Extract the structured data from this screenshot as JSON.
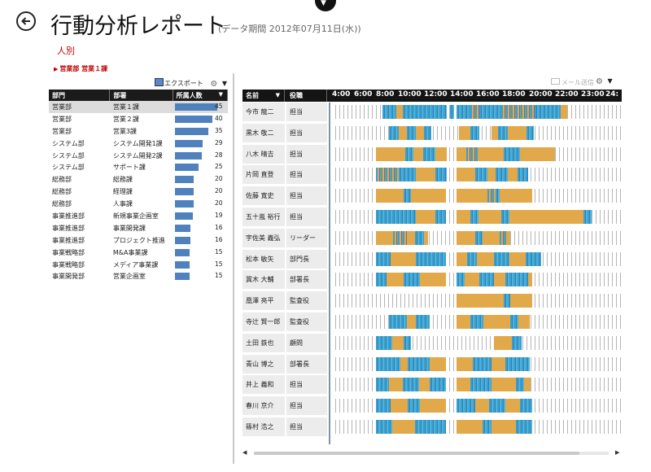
{
  "header": {
    "title": "行動分析レポート",
    "subtitle": "(データ期間 2012年07月11日(水))",
    "view_mode": "人別",
    "breadcrumb": "営業部 営業１課"
  },
  "left_panel": {
    "export_label": "エクスポート",
    "columns": [
      "部門",
      "部署",
      "所属人数"
    ],
    "rows": [
      {
        "dept": "営業部",
        "section": "営業１課",
        "count": 45,
        "selected": true
      },
      {
        "dept": "営業部",
        "section": "営業２課",
        "count": 40
      },
      {
        "dept": "営業部",
        "section": "営業3課",
        "count": 35
      },
      {
        "dept": "システム部",
        "section": "システム開発1課",
        "count": 29
      },
      {
        "dept": "システム部",
        "section": "システム開発2課",
        "count": 28
      },
      {
        "dept": "システム部",
        "section": "サポート課",
        "count": 25
      },
      {
        "dept": "総務部",
        "section": "総務課",
        "count": 20
      },
      {
        "dept": "総務部",
        "section": "経理課",
        "count": 20
      },
      {
        "dept": "総務部",
        "section": "人事課",
        "count": 20
      },
      {
        "dept": "事業推進部",
        "section": "新規事業企画室",
        "count": 19
      },
      {
        "dept": "事業推進部",
        "section": "事業開発課",
        "count": 16
      },
      {
        "dept": "事業推進部",
        "section": "プロジェクト推進",
        "count": 16
      },
      {
        "dept": "事業戦略部",
        "section": "M&A事業課",
        "count": 15
      },
      {
        "dept": "事業戦略部",
        "section": "メディア事業課",
        "count": 15
      },
      {
        "dept": "事業開発部",
        "section": "営業企画室",
        "count": 15
      }
    ],
    "max_count": 45
  },
  "right_panel": {
    "mail_label": "メール送信",
    "columns": [
      "名前",
      "役職"
    ],
    "time_labels": [
      "4:00",
      "6:00",
      "8:00",
      "10:00",
      "12:00",
      "14:00",
      "16:00",
      "18:00",
      "20:00",
      "22:00",
      "23:00",
      "24:"
    ],
    "timeline_start_hour": 4,
    "timeline_end_hour": 25.25,
    "colors": {
      "blue": "#3d9ecf",
      "orange": "#e2a94a",
      "purple": "#7a62b5",
      "green": "#7fb04d"
    },
    "people": [
      {
        "name": "今市 龍二",
        "role": "担当",
        "segments": [
          [
            7.5,
            8.5,
            "blue"
          ],
          [
            8.5,
            9.0,
            "orange"
          ],
          [
            9.0,
            12.3,
            "blue"
          ],
          [
            12.5,
            12.8,
            "blue"
          ],
          [
            13.0,
            14.0,
            "blue"
          ],
          [
            14.0,
            14.7,
            "mix"
          ],
          [
            14.7,
            16.3,
            "blue"
          ],
          [
            16.3,
            18.8,
            "mix"
          ],
          [
            18.8,
            20.7,
            "blue"
          ],
          [
            20.7,
            21.2,
            "orange"
          ]
        ]
      },
      {
        "name": "黒木 敬二",
        "role": "担当",
        "segments": [
          [
            8.0,
            8.7,
            "blue"
          ],
          [
            8.7,
            9.3,
            "orange"
          ],
          [
            9.3,
            10.0,
            "blue"
          ],
          [
            10.0,
            10.6,
            "orange"
          ],
          [
            10.6,
            11.1,
            "blue"
          ],
          [
            13.2,
            14.0,
            "orange"
          ],
          [
            14.0,
            14.7,
            "blue"
          ],
          [
            15.6,
            16.1,
            "orange"
          ],
          [
            16.1,
            16.8,
            "blue"
          ],
          [
            16.8,
            18.2,
            "orange"
          ],
          [
            18.2,
            18.7,
            "blue"
          ]
        ]
      },
      {
        "name": "八木 晴吉",
        "role": "担当",
        "segments": [
          [
            7.0,
            9.2,
            "orange"
          ],
          [
            9.2,
            9.8,
            "blue"
          ],
          [
            9.8,
            10.5,
            "orange"
          ],
          [
            10.5,
            11.4,
            "blue"
          ],
          [
            11.4,
            12.3,
            "orange"
          ],
          [
            13.0,
            13.7,
            "orange"
          ],
          [
            13.7,
            14.6,
            "mix"
          ],
          [
            14.6,
            16.5,
            "orange"
          ],
          [
            16.5,
            17.7,
            "blue"
          ],
          [
            17.7,
            20.3,
            "orange"
          ]
        ]
      },
      {
        "name": "片岡 直登",
        "role": "担当",
        "segments": [
          [
            7.0,
            8.7,
            "mix"
          ],
          [
            8.7,
            10.0,
            "blue"
          ],
          [
            10.0,
            11.4,
            "orange"
          ],
          [
            11.4,
            12.3,
            "blue"
          ],
          [
            13.0,
            14.4,
            "orange"
          ],
          [
            14.4,
            15.3,
            "blue"
          ],
          [
            15.3,
            15.9,
            "orange"
          ],
          [
            15.9,
            16.8,
            "blue"
          ],
          [
            16.8,
            17.5,
            "orange"
          ],
          [
            17.5,
            18.3,
            "blue"
          ]
        ]
      },
      {
        "name": "佐藤 寛史",
        "role": "担当",
        "segments": [
          [
            7.0,
            9.1,
            "orange"
          ],
          [
            9.1,
            9.6,
            "blue"
          ],
          [
            9.6,
            12.2,
            "orange"
          ],
          [
            13.0,
            15.3,
            "orange"
          ],
          [
            15.3,
            15.9,
            "mix"
          ],
          [
            15.9,
            16.2,
            "blue"
          ],
          [
            16.2,
            18.6,
            "orange"
          ]
        ]
      },
      {
        "name": "五十嵐 裕行",
        "role": "担当",
        "segments": [
          [
            7.0,
            10.0,
            "blue"
          ],
          [
            10.0,
            11.4,
            "orange"
          ],
          [
            11.4,
            12.2,
            "blue"
          ],
          [
            13.0,
            14.0,
            "orange"
          ],
          [
            14.0,
            14.6,
            "blue"
          ],
          [
            14.6,
            16.3,
            "orange"
          ],
          [
            16.3,
            16.9,
            "blue"
          ],
          [
            16.9,
            22.4,
            "orange"
          ],
          [
            22.4,
            23.0,
            "blue"
          ]
        ]
      },
      {
        "name": "宇佐美 義弘",
        "role": "リーダー",
        "segments": [
          [
            7.0,
            8.3,
            "orange"
          ],
          [
            8.3,
            9.3,
            "mix"
          ],
          [
            9.3,
            9.9,
            "orange"
          ],
          [
            9.9,
            10.6,
            "blue"
          ],
          [
            10.6,
            10.9,
            "orange"
          ],
          [
            13.0,
            14.4,
            "orange"
          ],
          [
            14.4,
            14.9,
            "blue"
          ],
          [
            14.9,
            16.2,
            "orange"
          ],
          [
            16.2,
            16.8,
            "mix"
          ],
          [
            16.8,
            17.0,
            "orange"
          ]
        ]
      },
      {
        "name": "松本 敏矢",
        "role": "部門長",
        "segments": [
          [
            7.0,
            8.1,
            "blue"
          ],
          [
            8.1,
            10.0,
            "orange"
          ],
          [
            10.0,
            12.2,
            "blue"
          ],
          [
            13.0,
            13.8,
            "orange"
          ],
          [
            13.8,
            14.5,
            "blue"
          ],
          [
            14.5,
            15.8,
            "orange"
          ],
          [
            15.8,
            16.9,
            "blue"
          ],
          [
            16.9,
            18.1,
            "orange"
          ],
          [
            18.1,
            19.3,
            "blue"
          ]
        ]
      },
      {
        "name": "冀木 大輔",
        "role": "部署長",
        "segments": [
          [
            7.0,
            7.8,
            "blue"
          ],
          [
            7.8,
            9.1,
            "orange"
          ],
          [
            9.1,
            10.3,
            "blue"
          ],
          [
            10.3,
            12.2,
            "orange"
          ],
          [
            13.0,
            13.6,
            "blue"
          ],
          [
            13.6,
            14.7,
            "orange"
          ],
          [
            14.7,
            15.8,
            "blue"
          ],
          [
            15.8,
            16.6,
            "orange"
          ],
          [
            16.6,
            18.3,
            "blue"
          ],
          [
            18.3,
            18.6,
            "orange"
          ]
        ]
      },
      {
        "name": "凰澤 亮平",
        "role": "監査役",
        "segments": [
          [
            13.0,
            16.5,
            "orange"
          ],
          [
            16.5,
            17.0,
            "blue"
          ],
          [
            17.0,
            18.6,
            "orange"
          ]
        ]
      },
      {
        "name": "寺辻 賢一郎",
        "role": "監査役",
        "segments": [
          [
            8.0,
            9.3,
            "blue"
          ],
          [
            9.3,
            10.0,
            "orange"
          ],
          [
            10.0,
            11.0,
            "blue"
          ],
          [
            13.0,
            14.0,
            "orange"
          ],
          [
            14.0,
            15.0,
            "blue"
          ],
          [
            15.0,
            17.0,
            "orange"
          ],
          [
            17.0,
            17.6,
            "blue"
          ],
          [
            17.6,
            18.4,
            "orange"
          ]
        ]
      },
      {
        "name": "土田 鉄也",
        "role": "顧問",
        "segments": [
          [
            7.0,
            8.2,
            "blue"
          ],
          [
            8.2,
            9.1,
            "orange"
          ],
          [
            9.1,
            9.6,
            "blue"
          ],
          [
            15.8,
            17.1,
            "orange"
          ],
          [
            17.1,
            17.8,
            "blue"
          ]
        ]
      },
      {
        "name": "青山 博之",
        "role": "部署長",
        "segments": [
          [
            7.0,
            8.8,
            "blue"
          ],
          [
            8.8,
            9.4,
            "orange"
          ],
          [
            9.4,
            11.0,
            "blue"
          ],
          [
            11.0,
            12.2,
            "orange"
          ],
          [
            13.0,
            14.2,
            "orange"
          ],
          [
            14.2,
            15.6,
            "blue"
          ],
          [
            15.6,
            16.6,
            "orange"
          ],
          [
            16.6,
            18.4,
            "blue"
          ]
        ]
      },
      {
        "name": "井上 義和",
        "role": "担当",
        "segments": [
          [
            7.0,
            8.0,
            "blue"
          ],
          [
            8.0,
            9.0,
            "orange"
          ],
          [
            9.0,
            10.2,
            "blue"
          ],
          [
            10.2,
            11.0,
            "orange"
          ],
          [
            11.0,
            12.2,
            "blue"
          ],
          [
            13.0,
            14.0,
            "orange"
          ],
          [
            14.0,
            15.6,
            "blue"
          ],
          [
            15.6,
            17.4,
            "orange"
          ],
          [
            17.4,
            18.0,
            "blue"
          ],
          [
            18.0,
            18.5,
            "orange"
          ]
        ]
      },
      {
        "name": "春川 京介",
        "role": "担当",
        "segments": [
          [
            7.0,
            8.1,
            "blue"
          ],
          [
            8.1,
            9.4,
            "orange"
          ],
          [
            9.4,
            10.3,
            "blue"
          ],
          [
            10.3,
            12.2,
            "orange"
          ],
          [
            13.0,
            14.4,
            "blue"
          ],
          [
            14.4,
            15.4,
            "orange"
          ],
          [
            15.4,
            16.6,
            "blue"
          ],
          [
            16.6,
            17.7,
            "orange"
          ],
          [
            17.7,
            18.6,
            "blue"
          ]
        ]
      },
      {
        "name": "篠村 浩之",
        "role": "担当",
        "segments": [
          [
            7.0,
            8.2,
            "blue"
          ],
          [
            8.2,
            9.9,
            "orange"
          ],
          [
            9.9,
            12.2,
            "blue"
          ],
          [
            13.0,
            14.9,
            "orange"
          ],
          [
            14.9,
            15.6,
            "blue"
          ],
          [
            15.6,
            17.4,
            "orange"
          ],
          [
            17.4,
            18.6,
            "blue"
          ]
        ]
      }
    ]
  }
}
